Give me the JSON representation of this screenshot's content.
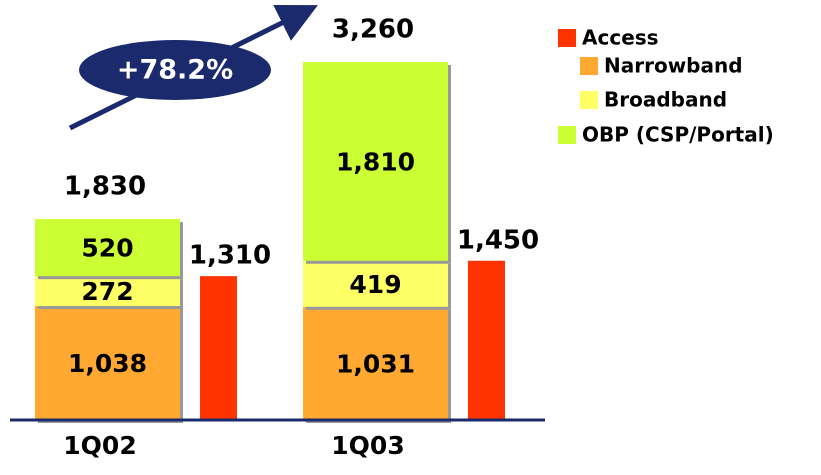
{
  "chart_data": {
    "type": "stacked_bar",
    "categories": [
      "1Q02",
      "1Q03"
    ],
    "series": [
      {
        "name": "Narrowband",
        "color": "#ffa832",
        "values": [
          1038,
          1031
        ],
        "value_labels": [
          "1,038",
          "1,031"
        ]
      },
      {
        "name": "Broadband",
        "color": "#ffff66",
        "values": [
          272,
          419
        ]
      },
      {
        "name": "OBP (CSP/Portal)",
        "color": "#ccff33",
        "values": [
          520,
          1810
        ],
        "value_labels": [
          "520",
          "1,810"
        ]
      }
    ],
    "side_series": {
      "name": "Access",
      "color": "#ff3300",
      "values": [
        1310,
        1450
      ],
      "value_labels": [
        "1,310",
        "1,450"
      ]
    },
    "totals": [
      1830,
      3260
    ],
    "total_labels": [
      "1,830",
      "3,260"
    ],
    "annotation": "+78.2%"
  }
}
